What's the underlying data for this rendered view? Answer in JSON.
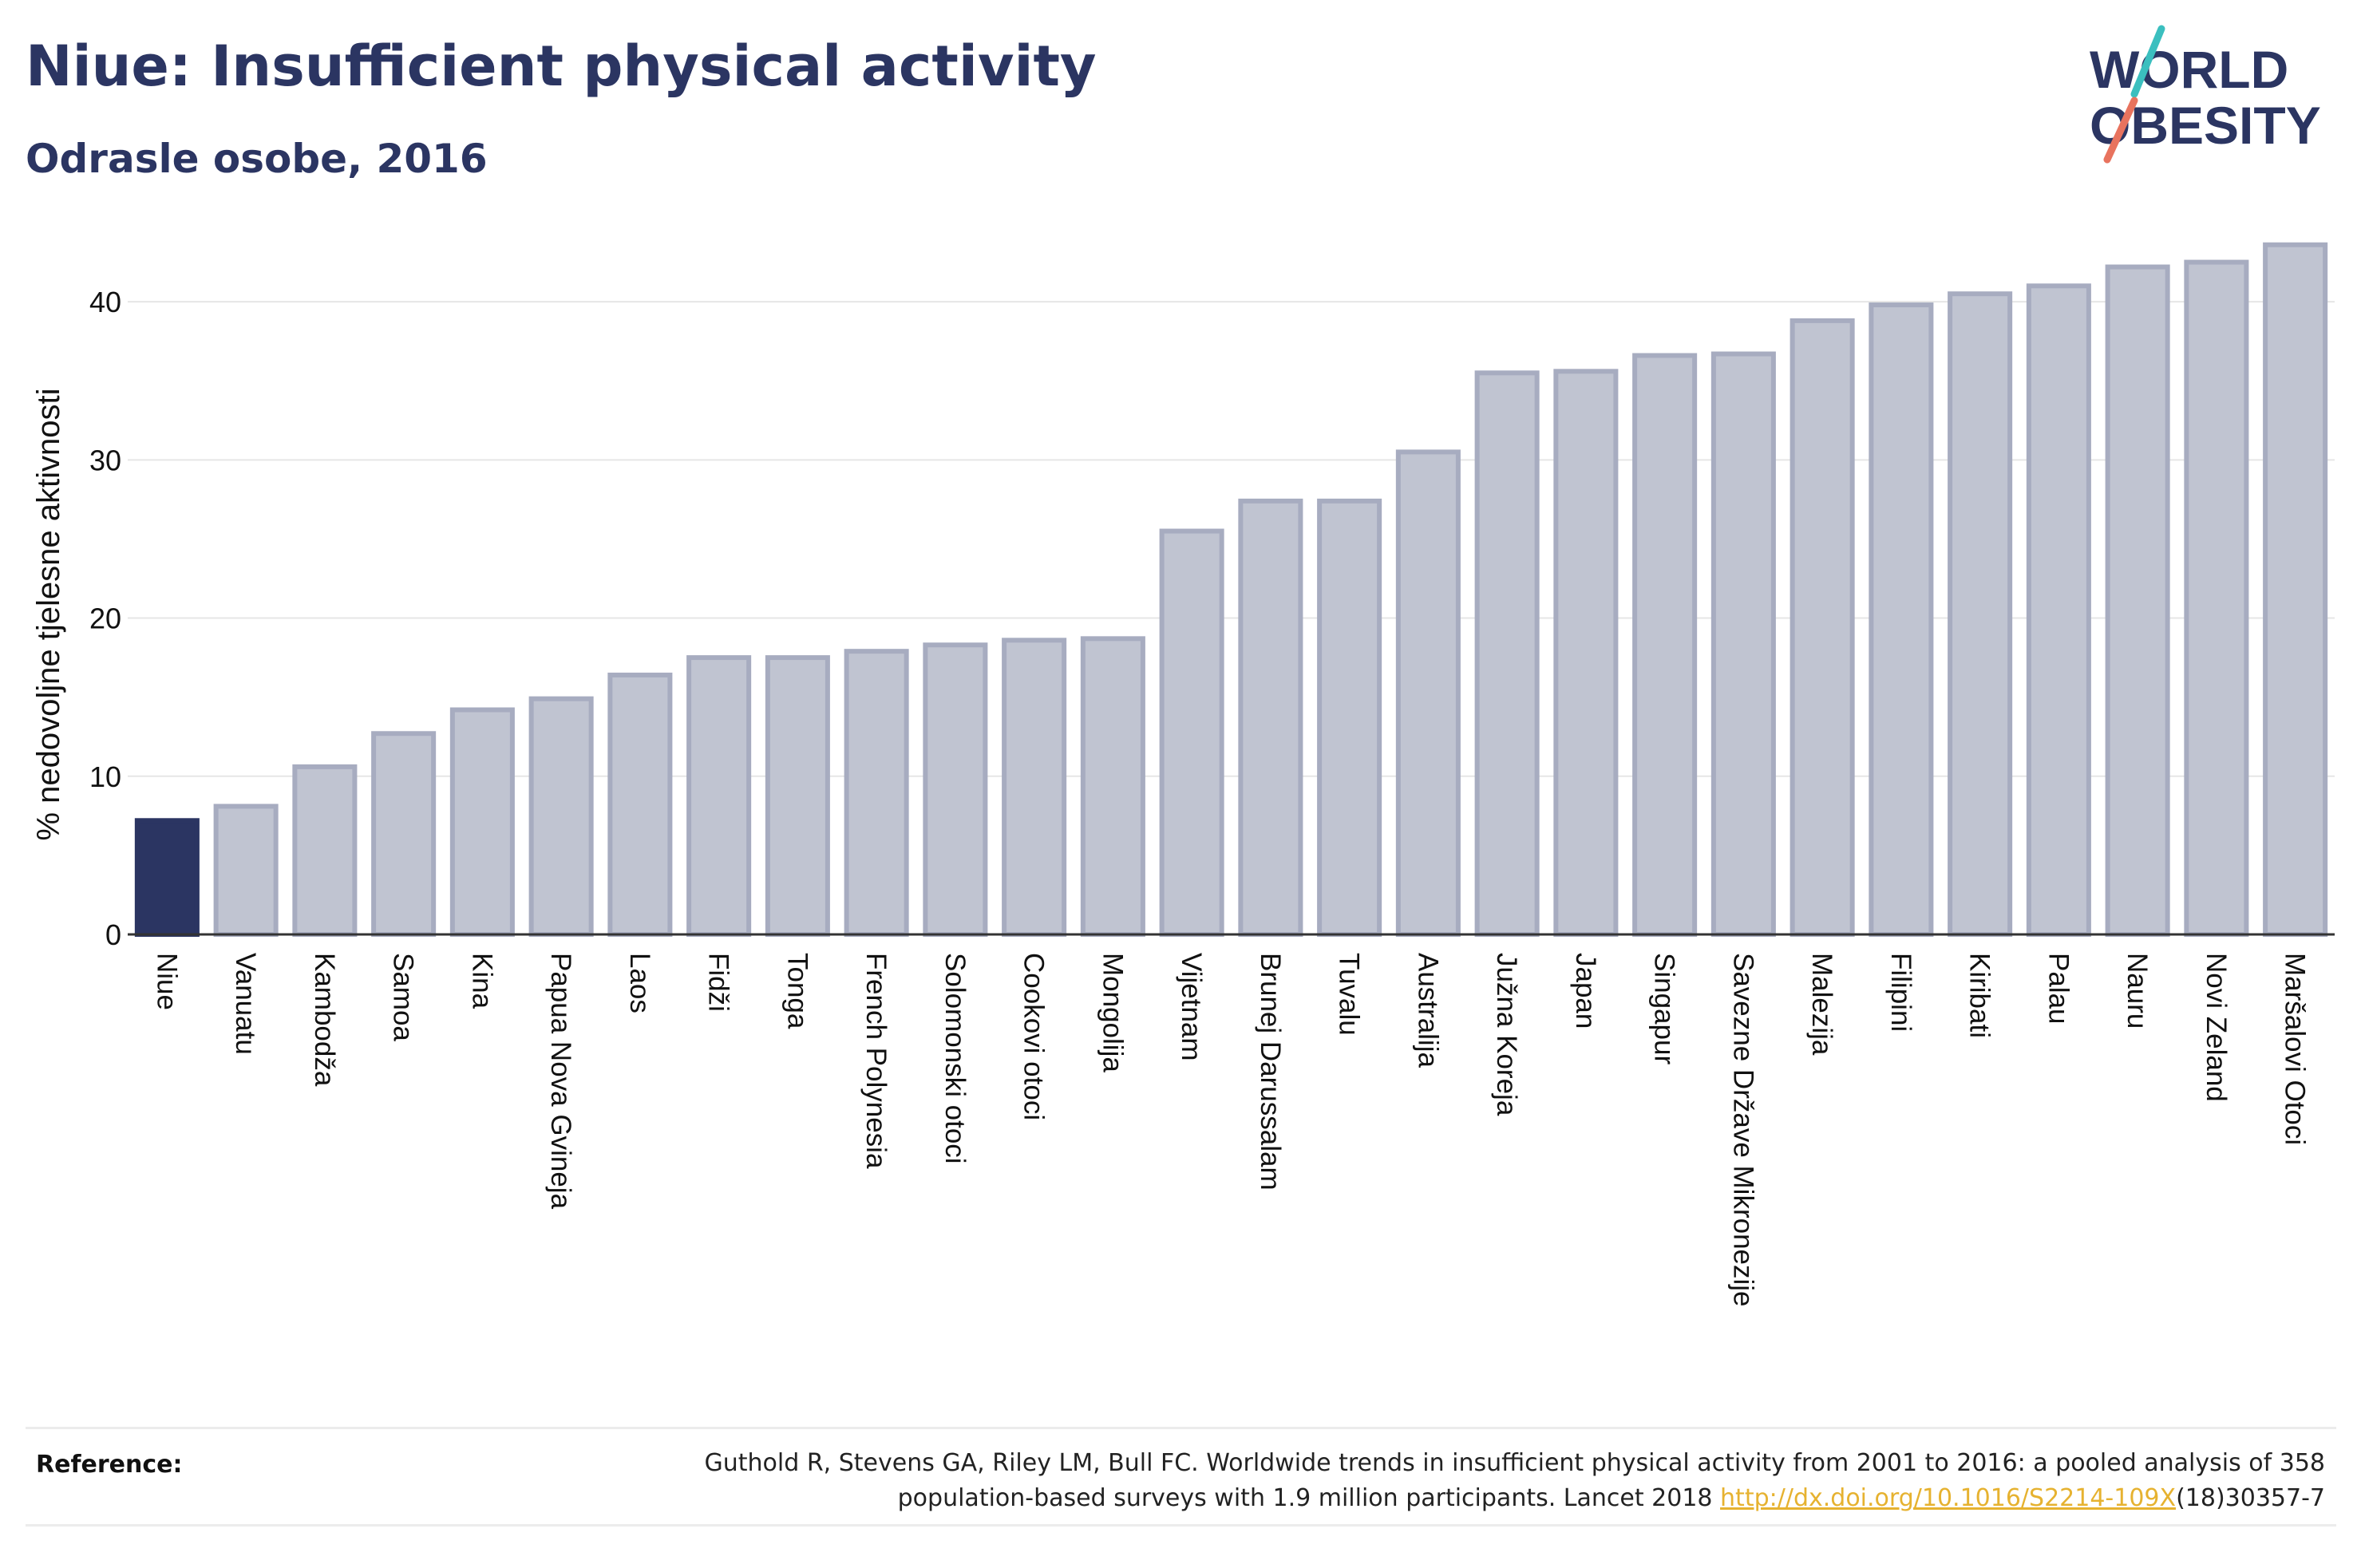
{
  "header": {
    "title": "Niue: Insufficient physical activity",
    "subtitle": "Odrasle osobe, 2016"
  },
  "logo": {
    "line1": "WORLD",
    "line2": "OBESITY",
    "colors": {
      "text": "#2b3562",
      "teal": "#3bbfbf",
      "coral": "#e8735e"
    }
  },
  "colors": {
    "highlight": "#2b3562",
    "bar_fill": "#c0c4d1",
    "bar_stroke": "#a7acc0",
    "grid": "#e6e6e6"
  },
  "chart_data": {
    "type": "bar",
    "ylabel": "% nedovoljne tjelesne aktivnosti",
    "xlabel": "",
    "ylim": [
      0,
      45
    ],
    "yticks": [
      0,
      10,
      20,
      30,
      40
    ],
    "grid": true,
    "highlight": "Niue",
    "categories": [
      "Niue",
      "Vanuatu",
      "Kambodža",
      "Samoa",
      "Kina",
      "Papua Nova Gvineja",
      "Laos",
      "Fidži",
      "Tonga",
      "French Polynesia",
      "Solomonski otoci",
      "Cookovi otoci",
      "Mongolija",
      "Vijetnam",
      "Brunej Darussalam",
      "Tuvalu",
      "Australija",
      "Južna Koreja",
      "Japan",
      "Singapur",
      "Savezne Države Mikronezije",
      "Malezija",
      "Filipini",
      "Kiribati",
      "Palau",
      "Nauru",
      "Novi Zeland",
      "Maršalovi Otoci"
    ],
    "values": [
      7.2,
      8.1,
      10.6,
      12.7,
      14.2,
      14.9,
      16.4,
      17.5,
      17.5,
      17.9,
      18.3,
      18.6,
      18.7,
      25.5,
      27.4,
      27.4,
      30.5,
      35.5,
      35.6,
      36.6,
      36.7,
      38.8,
      39.8,
      40.5,
      41.0,
      42.2,
      42.5,
      43.6
    ]
  },
  "reference": {
    "label": "Reference:",
    "text_line1": "Guthold R, Stevens GA, Riley LM, Bull FC. Worldwide trends in insufficient physical activity from 2001 to 2016: a pooled analysis of 358",
    "text_line2_pre": "population-based surveys with 1.9 million participants. Lancet 2018 ",
    "link": "http://dx.doi.org/10.1016/S2214-109X",
    "text_line2_post": "(18)30357-7"
  }
}
